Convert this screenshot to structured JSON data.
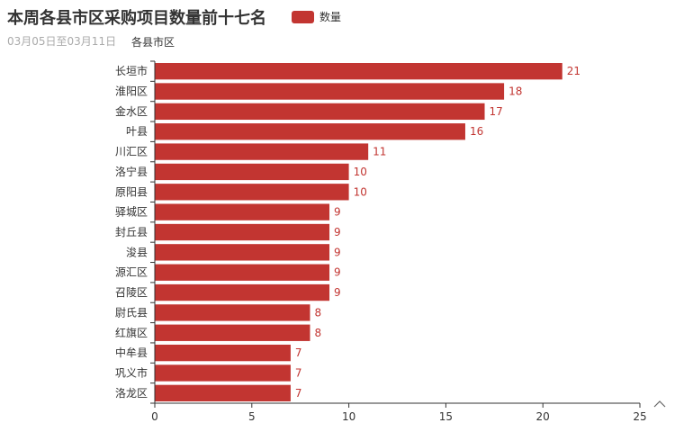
{
  "chart_data": {
    "type": "bar",
    "orientation": "horizontal",
    "title": "本周各县市区采购项目数量前十七名",
    "subtitle": "03月05日至03月11日",
    "ylabel": "各县市区",
    "xlabel": "",
    "categories": [
      "长垣市",
      "淮阳区",
      "金水区",
      "叶县",
      "川汇区",
      "洛宁县",
      "原阳县",
      "驿城区",
      "封丘县",
      "浚县",
      "源汇区",
      "召陵区",
      "尉氏县",
      "红旗区",
      "中牟县",
      "巩义市",
      "洛龙区"
    ],
    "series": [
      {
        "name": "数量",
        "color": "#c23531",
        "values": [
          21,
          18,
          17,
          16,
          11,
          10,
          10,
          9,
          9,
          9,
          9,
          9,
          8,
          8,
          7,
          7,
          7
        ]
      }
    ],
    "xlim": [
      0,
      25
    ],
    "xticks": [
      0,
      5,
      10,
      15,
      20,
      25
    ],
    "data_labels": true,
    "grid": false,
    "legend_position": "top"
  },
  "axis_arrow_icon": "chevron-up-icon",
  "colors": {
    "bar": "#c23531",
    "axis": "#333333",
    "label": "#c23531"
  }
}
